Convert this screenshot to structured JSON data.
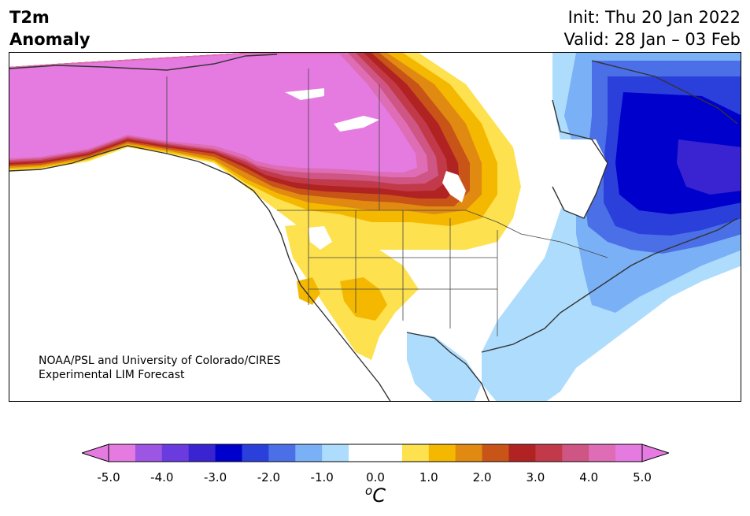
{
  "title": {
    "line1": "T2m",
    "line2": "Anomaly"
  },
  "dates": {
    "init": "Init: Thu 20 Jan 2022",
    "valid": "Valid: 28 Jan – 03 Feb"
  },
  "credit": {
    "line1": "NOAA/PSL and University of Colorado/CIRES",
    "line2": "Experimental LIM Forecast"
  },
  "colorbar": {
    "ticks": [
      "-5.0",
      "-4.0",
      "-3.0",
      "-2.0",
      "-1.0",
      "0.0",
      "1.0",
      "2.0",
      "3.0",
      "4.0",
      "5.0"
    ],
    "unit_base": "C",
    "unit_sup": "o",
    "colors": [
      "#e57be0",
      "#9d55e3",
      "#6a3ce0",
      "#3a23d0",
      "#0000cd",
      "#2b3fdb",
      "#4b6fe6",
      "#7ab0f5",
      "#aedcfd",
      "#ffffff",
      "#ffffff",
      "#fde14e",
      "#f5b800",
      "#e08a12",
      "#c85418",
      "#b02322",
      "#c23a4a",
      "#cf5584",
      "#de6db6",
      "#e57be0"
    ],
    "under_color": "#e57be0",
    "over_color": "#e57be0"
  },
  "colors": {
    "warm_max": "#e57be0",
    "warm_dark": "#b02322",
    "warm_mid": "#e08a12",
    "warm_light": "#fde14e",
    "cold_max": "#0000cd",
    "cold_mid": "#4b6fe6",
    "cold_light": "#aedcfd",
    "coast": "#333333"
  }
}
